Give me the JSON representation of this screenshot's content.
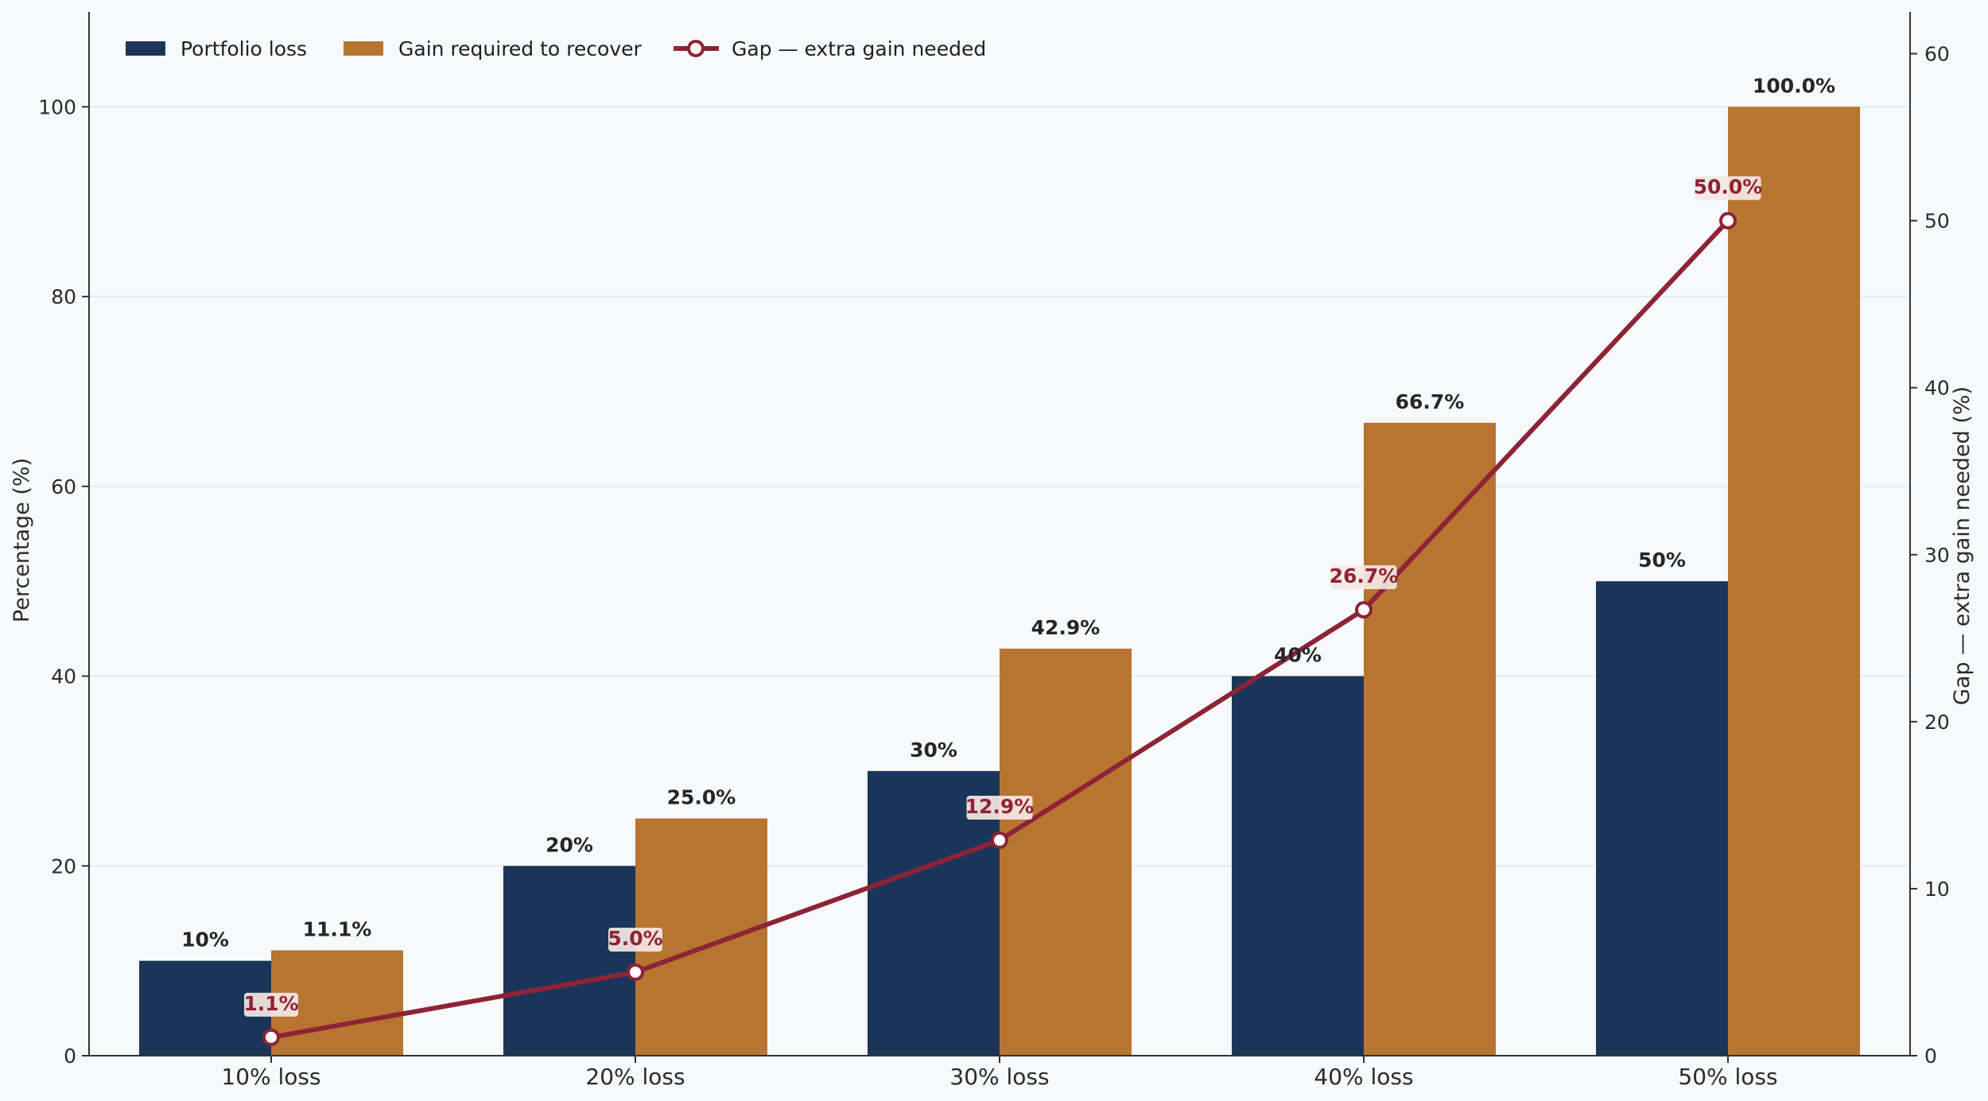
{
  "chart_data": {
    "type": "bar",
    "categories": [
      "10% loss",
      "20% loss",
      "30% loss",
      "40% loss",
      "50% loss"
    ],
    "series": [
      {
        "name": "Portfolio loss",
        "type": "bar",
        "axis": "left",
        "color": "#1b355a",
        "values": [
          10,
          20,
          30,
          40,
          50
        ],
        "labels": [
          "10%",
          "20%",
          "30%",
          "40%",
          "50%"
        ]
      },
      {
        "name": "Gain required to recover",
        "type": "bar",
        "axis": "right-bar",
        "color": "#b87431",
        "values": [
          11.1,
          25.0,
          42.9,
          66.7,
          100.0
        ],
        "labels": [
          "11.1%",
          "25.0%",
          "42.9%",
          "66.7%",
          "100.0%"
        ]
      },
      {
        "name": "Gap — extra gain needed",
        "type": "line",
        "axis": "right",
        "color": "#8e2336",
        "values": [
          1.1,
          5.0,
          12.9,
          26.7,
          50.0
        ],
        "labels": [
          "1.1%",
          "5.0%",
          "12.9%",
          "26.7%",
          "50.0%"
        ]
      }
    ],
    "ylabel": "Percentage (%)",
    "y2label": "Gap — extra gain needed (%)",
    "ylim": [
      0,
      110
    ],
    "y2lim": [
      0,
      62.5
    ],
    "yticks": [
      0,
      20,
      40,
      60,
      80,
      100
    ],
    "y2ticks": [
      0,
      10,
      20,
      30,
      40,
      50,
      60
    ],
    "grid": true,
    "legend_position": "top-left"
  }
}
